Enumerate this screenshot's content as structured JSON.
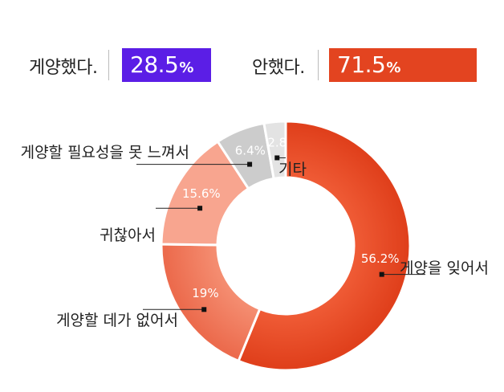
{
  "summary": {
    "did_label": "게양했다.",
    "did_value": "28.5",
    "did_unit": "%",
    "did_color": "#5b1ee6",
    "didnt_label": "안했다.",
    "didnt_value": "71.5",
    "didnt_unit": "%",
    "didnt_color": "#e34420"
  },
  "chart_data": {
    "type": "pie",
    "donut": true,
    "title": "",
    "slices": [
      {
        "label": "게양을 잊어서",
        "value": 56.2,
        "display": "56.2%",
        "color": "#e5461f"
      },
      {
        "label": "게양할 데가 없어서",
        "value": 19,
        "display": "19%",
        "color": "#ef7355"
      },
      {
        "label": "귀찮아서",
        "value": 15.6,
        "display": "15.6%",
        "color": "#f8a58f"
      },
      {
        "label": "게양할 필요성을 못 느껴서",
        "value": 6.4,
        "display": "6.4%",
        "color": "#cccccc"
      },
      {
        "label": "기타",
        "value": 2.8,
        "display": "2.8",
        "color": "#e3e3e3"
      }
    ]
  }
}
